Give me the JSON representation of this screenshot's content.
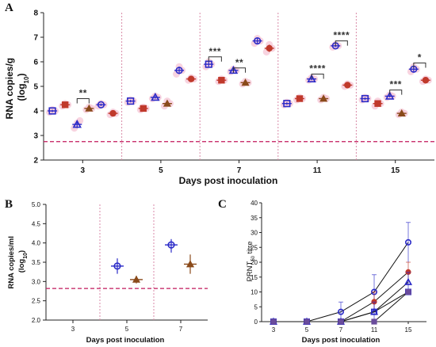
{
  "colors": {
    "blue": "#2b2bc8",
    "red": "#c0392b",
    "brown": "#8a4a1a",
    "pink_bg": "#f5c6d6",
    "threshold": "#c2185b",
    "divider": "#d98aa8",
    "purple": "#6a4c9c"
  },
  "chart_data": [
    {
      "panel": "A",
      "type": "scatter",
      "ylabel_line1": "RNA copies/g",
      "ylabel_line2": "(log",
      "ylabel_sub": "10",
      "ylabel_end": ")",
      "xlabel": "Days post inoculation",
      "ylim": [
        2,
        8
      ],
      "yticks": [
        "2",
        "3",
        "4",
        "5",
        "6",
        "7",
        "8"
      ],
      "categories": [
        "3",
        "5",
        "7",
        "11",
        "15"
      ],
      "threshold": 2.75,
      "groups": [
        {
          "day": "3",
          "cat_index": 0,
          "points": [
            {
              "shape": "square",
              "color": "blue",
              "mean": 4.0,
              "values": [
                3.95,
                4.05,
                4.0
              ]
            },
            {
              "shape": "square",
              "color": "red",
              "mean": 4.25,
              "values": [
                4.2,
                4.3,
                4.25
              ]
            },
            {
              "shape": "triangle",
              "color": "blue",
              "mean": 3.45,
              "values": [
                3.3,
                3.5,
                3.6
              ]
            },
            {
              "shape": "triangle",
              "color": "brown",
              "mean": 4.1,
              "values": [
                4.05,
                4.15,
                4.1
              ]
            },
            {
              "shape": "circle",
              "color": "blue",
              "mean": 4.25,
              "values": [
                4.2,
                4.3,
                4.25
              ]
            },
            {
              "shape": "circle",
              "color": "red",
              "mean": 3.9,
              "values": [
                3.85,
                3.95,
                3.9
              ]
            }
          ]
        },
        {
          "day": "5",
          "cat_index": 1,
          "points": [
            {
              "shape": "square",
              "color": "blue",
              "mean": 4.4,
              "values": [
                4.35,
                4.45,
                4.4
              ]
            },
            {
              "shape": "square",
              "color": "red",
              "mean": 4.1,
              "values": [
                4.05,
                4.15,
                4.1
              ]
            },
            {
              "shape": "triangle",
              "color": "blue",
              "mean": 4.55,
              "values": [
                4.5,
                4.6,
                4.55
              ]
            },
            {
              "shape": "triangle",
              "color": "brown",
              "mean": 4.3,
              "values": [
                4.2,
                4.4,
                4.3
              ]
            },
            {
              "shape": "circle",
              "color": "blue",
              "mean": 5.65,
              "values": [
                5.5,
                5.8,
                5.65
              ]
            },
            {
              "shape": "circle",
              "color": "red",
              "mean": 5.3,
              "values": [
                5.25,
                5.35,
                5.3
              ]
            }
          ]
        },
        {
          "day": "7",
          "cat_index": 2,
          "points": [
            {
              "shape": "square",
              "color": "blue",
              "mean": 5.9,
              "values": [
                5.8,
                6.0,
                5.9
              ]
            },
            {
              "shape": "square",
              "color": "red",
              "mean": 5.25,
              "values": [
                5.2,
                5.3,
                5.25
              ]
            },
            {
              "shape": "triangle",
              "color": "blue",
              "mean": 5.65,
              "values": [
                5.6,
                5.7,
                5.65
              ]
            },
            {
              "shape": "triangle",
              "color": "brown",
              "mean": 5.15,
              "values": [
                5.1,
                5.2,
                5.15
              ]
            },
            {
              "shape": "circle",
              "color": "blue",
              "mean": 6.85,
              "values": [
                6.75,
                6.95,
                6.85
              ]
            },
            {
              "shape": "circle",
              "color": "red",
              "mean": 6.55,
              "values": [
                6.4,
                6.7,
                6.55
              ]
            }
          ]
        },
        {
          "day": "11",
          "cat_index": 3,
          "points": [
            {
              "shape": "square",
              "color": "blue",
              "mean": 4.3,
              "values": [
                4.25,
                4.35,
                4.3
              ]
            },
            {
              "shape": "square",
              "color": "red",
              "mean": 4.5,
              "values": [
                4.45,
                4.55,
                4.5
              ]
            },
            {
              "shape": "triangle",
              "color": "blue",
              "mean": 5.3,
              "values": [
                5.25,
                5.35,
                5.3
              ]
            },
            {
              "shape": "triangle",
              "color": "brown",
              "mean": 4.5,
              "values": [
                4.45,
                4.55,
                4.5
              ]
            },
            {
              "shape": "circle",
              "color": "blue",
              "mean": 6.65,
              "values": [
                6.6,
                6.7,
                6.65
              ]
            },
            {
              "shape": "circle",
              "color": "red",
              "mean": 5.05,
              "values": [
                5.0,
                5.1,
                5.05
              ]
            }
          ]
        },
        {
          "day": "15",
          "cat_index": 4,
          "points": [
            {
              "shape": "square",
              "color": "blue",
              "mean": 4.5,
              "values": [
                4.45,
                4.55,
                4.5
              ]
            },
            {
              "shape": "square",
              "color": "red",
              "mean": 4.3,
              "values": [
                4.2,
                4.4,
                4.3
              ]
            },
            {
              "shape": "triangle",
              "color": "blue",
              "mean": 4.6,
              "values": [
                4.55,
                4.65,
                4.6
              ]
            },
            {
              "shape": "triangle",
              "color": "brown",
              "mean": 3.9,
              "values": [
                3.85,
                3.95,
                3.9
              ]
            },
            {
              "shape": "circle",
              "color": "blue",
              "mean": 5.7,
              "values": [
                5.6,
                5.8,
                5.7
              ]
            },
            {
              "shape": "circle",
              "color": "red",
              "mean": 5.25,
              "values": [
                5.2,
                5.3,
                5.25
              ]
            }
          ]
        }
      ],
      "significance": [
        {
          "label": "**",
          "cat_index": 0,
          "from": 2,
          "to": 3,
          "y": 4.5
        },
        {
          "label": "***",
          "cat_index": 2,
          "from": 0,
          "to": 1,
          "y": 6.2
        },
        {
          "label": "**",
          "cat_index": 2,
          "from": 2,
          "to": 3,
          "y": 5.75
        },
        {
          "label": "****",
          "cat_index": 3,
          "from": 2,
          "to": 3,
          "y": 5.5
        },
        {
          "label": "****",
          "cat_index": 3,
          "from": 4,
          "to": 5,
          "y": 6.85
        },
        {
          "label": "***",
          "cat_index": 4,
          "from": 2,
          "to": 3,
          "y": 4.85
        },
        {
          "label": "*",
          "cat_index": 4,
          "from": 4,
          "to": 5,
          "y": 5.95
        }
      ]
    },
    {
      "panel": "B",
      "type": "scatter",
      "ylabel_line1": "RNA copies/ml",
      "ylabel_line2": "(log",
      "ylabel_sub": "10",
      "ylabel_end": ")",
      "xlabel": "Days post inoculation",
      "ylim": [
        2.0,
        5.0
      ],
      "yticks": [
        "2.0",
        "2.5",
        "3.0",
        "3.5",
        "4.0",
        "4.5",
        "5.0"
      ],
      "categories": [
        "3",
        "5",
        "7"
      ],
      "threshold": 2.82,
      "groups": [
        {
          "day": "5",
          "cat_index": 1,
          "points": [
            {
              "shape": "circle",
              "color": "blue",
              "mean": 3.4,
              "values": [
                3.2,
                3.4,
                3.6
              ]
            },
            {
              "shape": "triangle",
              "color": "brown",
              "mean": 3.05,
              "values": [
                2.95,
                3.1,
                3.15
              ]
            }
          ]
        },
        {
          "day": "7",
          "cat_index": 2,
          "points": [
            {
              "shape": "circle",
              "color": "blue",
              "mean": 3.95,
              "values": [
                3.75,
                4.0,
                4.1
              ]
            },
            {
              "shape": "triangle",
              "color": "brown",
              "mean": 3.45,
              "values": [
                3.2,
                3.55,
                3.7
              ]
            }
          ]
        }
      ]
    },
    {
      "panel": "C",
      "type": "line",
      "ylabel": "PRNT",
      "ylabel_sub": "50",
      "ylabel_end": " titre",
      "xlabel": "Days post inoculation",
      "ylim": [
        0,
        40
      ],
      "yticks": [
        "0",
        "5",
        "10",
        "15",
        "20",
        "25",
        "30",
        "35",
        "40"
      ],
      "x": [
        "3",
        "5",
        "7",
        "11",
        "15"
      ],
      "series": [
        {
          "shape": "circle",
          "color": "blue",
          "values": [
            0,
            0,
            3.3,
            10,
            26.7
          ],
          "err": [
            0,
            0,
            3.3,
            5.8,
            6.7
          ]
        },
        {
          "shape": "circle",
          "color": "red",
          "values": [
            0,
            0,
            0,
            6.7,
            16.7
          ],
          "err": [
            0,
            0,
            0,
            3.3,
            3.3
          ]
        },
        {
          "shape": "triangle",
          "color": "blue",
          "values": [
            0,
            0,
            0,
            3.3,
            13.3
          ],
          "err": [
            0,
            0,
            0,
            3.3,
            3.3
          ]
        },
        {
          "shape": "square",
          "color": "blue",
          "values": [
            0,
            0,
            0,
            3.3,
            10
          ],
          "err": [
            0,
            0,
            0,
            0,
            0
          ]
        },
        {
          "shape": "square",
          "color": "purple",
          "values": [
            0,
            0,
            0,
            0,
            10
          ],
          "err": [
            0,
            0,
            0,
            0,
            0
          ]
        }
      ]
    }
  ]
}
